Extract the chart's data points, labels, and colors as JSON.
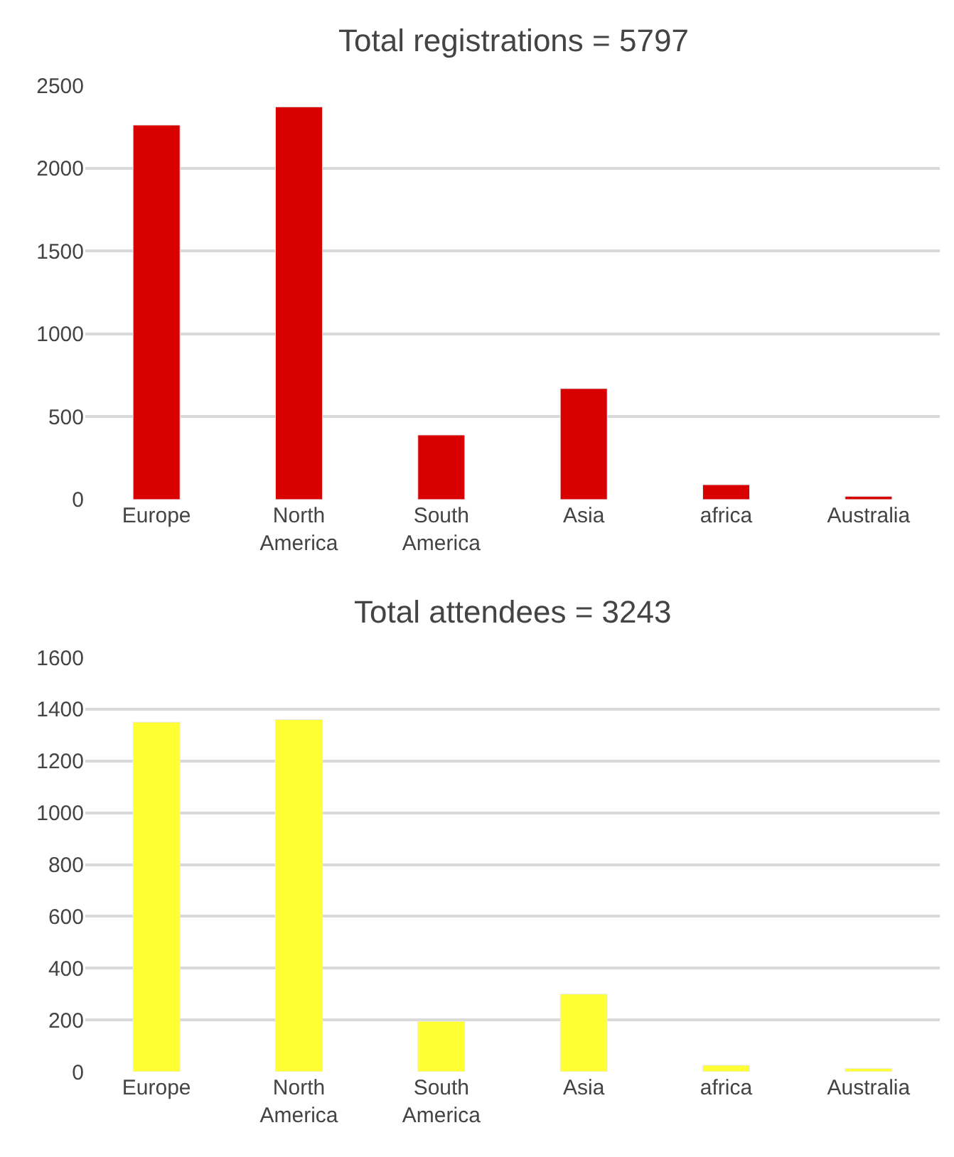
{
  "chart_data": [
    {
      "type": "bar",
      "title": "Total registrations = 5797",
      "categories": [
        "Europe",
        "North America",
        "South America",
        "Asia",
        "africa",
        "Australia"
      ],
      "values": [
        2260,
        2370,
        390,
        670,
        90,
        20
      ],
      "color": "#d90000",
      "ylim": [
        0,
        2500
      ],
      "yticks": [
        0,
        500,
        1000,
        1500,
        2000,
        2500
      ],
      "grid": "y",
      "legend": false
    },
    {
      "type": "bar",
      "title": "Total attendees = 3243",
      "categories": [
        "Europe",
        "North America",
        "South America",
        "Asia",
        "africa",
        "Australia"
      ],
      "values": [
        1350,
        1360,
        195,
        300,
        25,
        13
      ],
      "color": "#ffff33",
      "ylim": [
        0,
        1600
      ],
      "yticks": [
        0,
        200,
        400,
        600,
        800,
        1000,
        1200,
        1400,
        1600
      ],
      "grid": "y",
      "legend": false
    }
  ]
}
